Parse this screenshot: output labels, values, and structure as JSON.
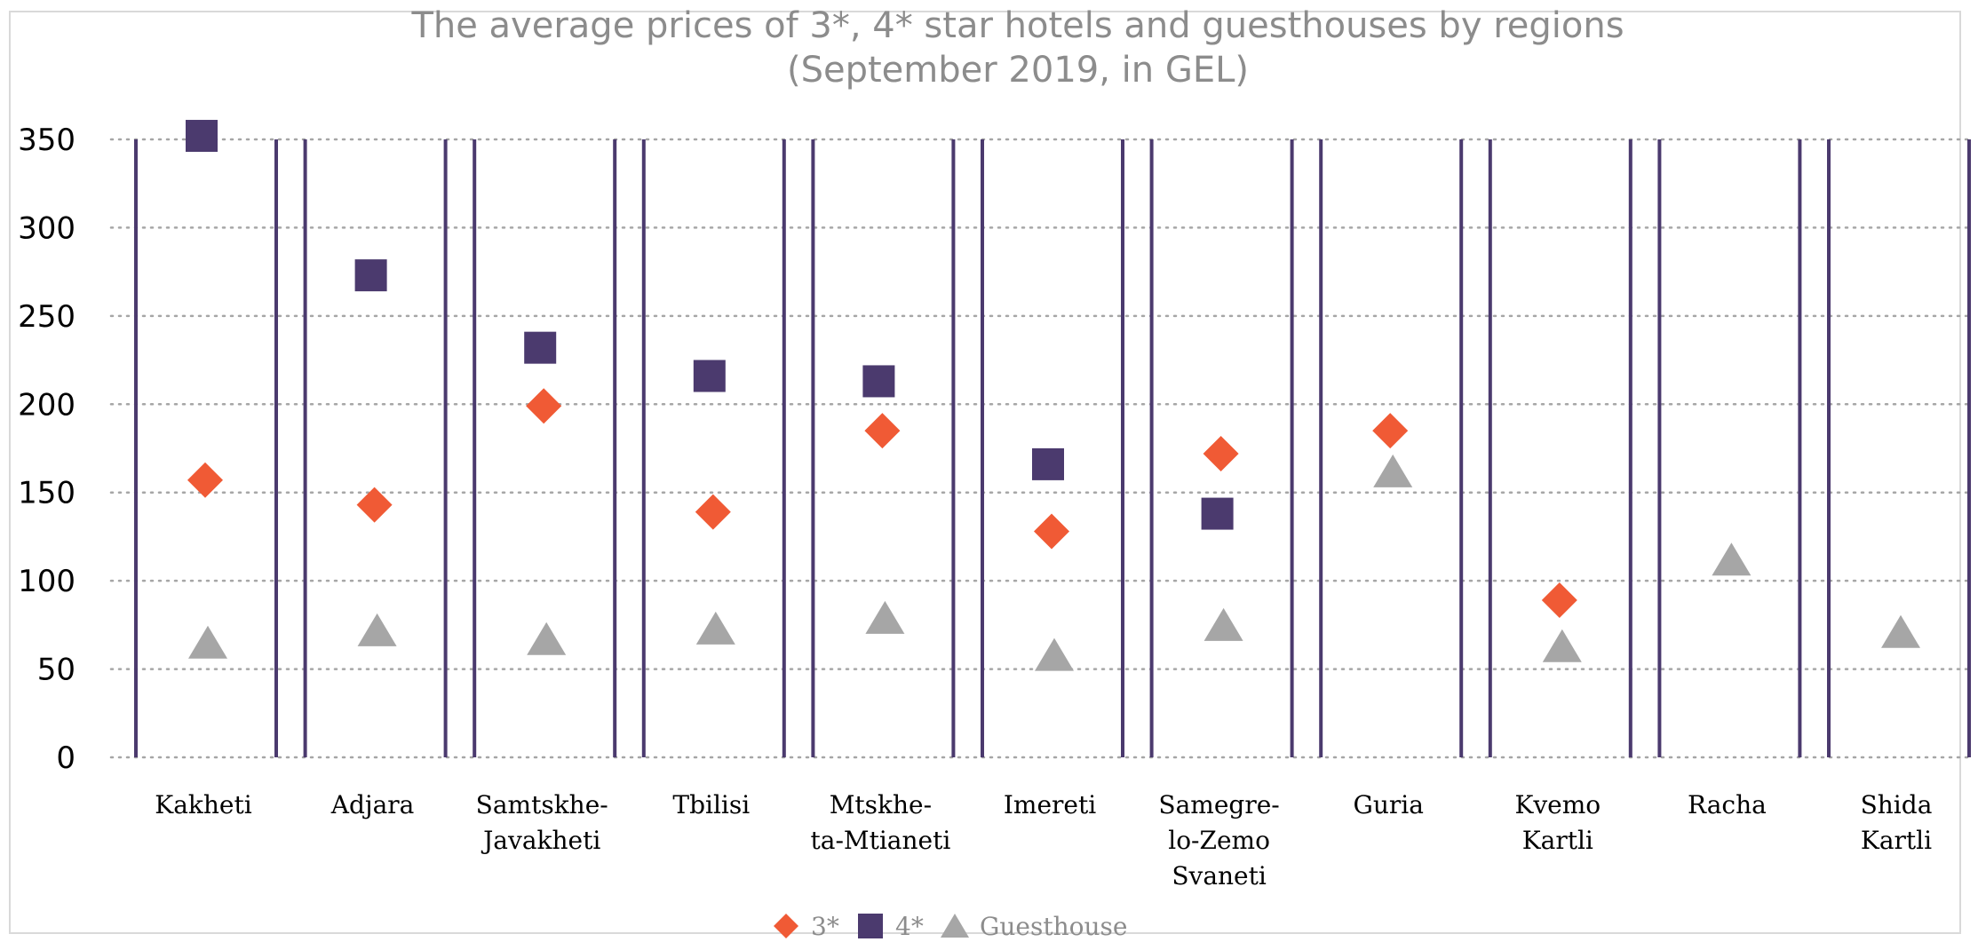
{
  "chart_data": {
    "type": "scatter",
    "title": [
      "The average prices of 3*, 4* star hotels and guesthouses by regions",
      "(September 2019, in GEL)"
    ],
    "categories": [
      [
        "Kakheti"
      ],
      [
        "Adjara"
      ],
      [
        "Samtskhe-",
        "Javakheti"
      ],
      [
        "Tbilisi"
      ],
      [
        "Mtskhe-",
        "ta-Mtianeti"
      ],
      [
        "Imereti"
      ],
      [
        "Samegre-",
        "lo-Zemo",
        "Svaneti"
      ],
      [
        "Guria"
      ],
      [
        "Kvemo",
        "Kartli"
      ],
      [
        "Racha"
      ],
      [
        "Shida",
        "Kartli"
      ]
    ],
    "series": [
      {
        "name": "3*",
        "marker": "diamond",
        "color": "#f05a35",
        "values": [
          157,
          143,
          199,
          139,
          185,
          128,
          172,
          185,
          89,
          null,
          null
        ]
      },
      {
        "name": "4*",
        "marker": "square",
        "color": "#4b3a6e",
        "values": [
          352,
          273,
          232,
          216,
          213,
          166,
          138,
          null,
          null,
          null,
          null
        ]
      },
      {
        "name": "Guesthouse",
        "marker": "triangle",
        "color": "#a6a6a6",
        "values": [
          65,
          72,
          67,
          73,
          79,
          58,
          75,
          162,
          63,
          112,
          71
        ]
      }
    ],
    "ylim": [
      0,
      350
    ],
    "yticks": [
      0,
      50,
      100,
      150,
      200,
      250,
      300,
      350
    ],
    "grid": "dotted horizontal",
    "legend_position": "bottom",
    "colors": {
      "separator": "#4b3a6e",
      "grid": "#a6a6a6",
      "title": "#8c8c8c"
    }
  }
}
